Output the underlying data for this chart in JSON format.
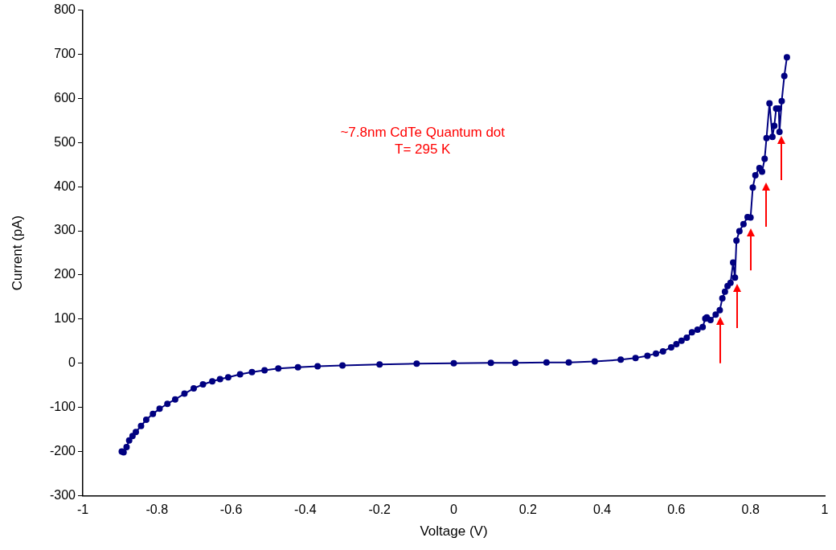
{
  "chart_data": {
    "type": "line",
    "xlabel": "Voltage (V)",
    "ylabel": "Current (pA)",
    "annotations": [
      "~7.8nm CdTe Quantum dot",
      "T= 295 K"
    ],
    "xlim": [
      -1,
      1
    ],
    "xticks": [
      -1,
      -0.8,
      -0.6,
      -0.4,
      -0.2,
      0,
      0.2,
      0.4,
      0.6,
      0.8,
      1
    ],
    "ylim": [
      -300,
      800
    ],
    "yticks": [
      -300,
      -200,
      -100,
      0,
      100,
      200,
      300,
      400,
      500,
      600,
      700,
      800
    ],
    "grid": false,
    "legend": false,
    "marker": "circle",
    "line_style": "solid",
    "series": [
      {
        "color": "#000080",
        "x": [
          -0.895,
          -0.89,
          -0.882,
          -0.875,
          -0.866,
          -0.857,
          -0.843,
          -0.829,
          -0.811,
          -0.793,
          -0.772,
          -0.751,
          -0.726,
          -0.701,
          -0.676,
          -0.651,
          -0.63,
          -0.608,
          -0.576,
          -0.544,
          -0.51,
          -0.473,
          -0.42,
          -0.367,
          -0.3,
          -0.2,
          -0.1,
          0,
          0.1,
          0.166,
          0.25,
          0.31,
          0.38,
          0.45,
          0.49,
          0.522,
          0.545,
          0.564,
          0.586,
          0.6,
          0.614,
          0.628,
          0.642,
          0.657,
          0.671,
          0.678,
          0.682,
          0.692,
          0.706,
          0.717,
          0.724,
          0.731,
          0.738,
          0.746,
          0.753,
          0.758,
          0.762,
          0.77,
          0.781,
          0.792,
          0.8,
          0.806,
          0.813,
          0.824,
          0.831,
          0.838,
          0.843,
          0.851,
          0.859,
          0.864,
          0.869,
          0.876,
          0.878,
          0.884,
          0.891,
          0.898
        ],
        "values": [
          -200,
          -202,
          -190,
          -175,
          -165,
          -156,
          -142,
          -128,
          -115,
          -103,
          -92,
          -82,
          -69,
          -57,
          -48,
          -41,
          -36,
          -32,
          -25,
          -20,
          -16,
          -12,
          -9,
          -7,
          -5,
          -3,
          -1,
          0,
          1,
          1,
          2,
          2,
          4,
          8,
          12,
          17,
          22,
          27,
          36,
          43,
          51,
          58,
          70,
          76,
          82,
          101,
          104,
          98,
          110,
          120,
          147,
          162,
          175,
          182,
          228,
          194,
          278,
          299,
          315,
          331,
          330,
          398,
          426,
          442,
          434,
          463,
          510,
          589,
          513,
          538,
          577,
          577,
          524,
          594,
          651,
          693
        ]
      }
    ]
  }
}
